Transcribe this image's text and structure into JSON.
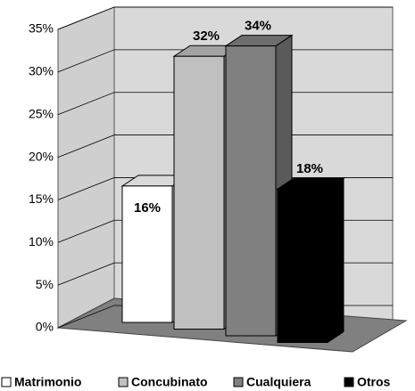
{
  "chart_data": {
    "type": "bar3d",
    "series": [
      {
        "name": "Matrimonio",
        "color": "#ffffff",
        "values": [
          16
        ],
        "value_labels": [
          "16%"
        ]
      },
      {
        "name": "Concubinato",
        "color": "#c0c0c0",
        "values": [
          32
        ],
        "value_labels": [
          "32%"
        ]
      },
      {
        "name": "Cualquiera",
        "color": "#808080",
        "values": [
          34
        ],
        "value_labels": [
          "34%"
        ]
      },
      {
        "name": "Otros",
        "color": "#000000",
        "values": [
          18
        ],
        "value_labels": [
          "18%"
        ]
      }
    ],
    "ylim": [
      0,
      35
    ],
    "yticks": [
      {
        "value": 0,
        "label": "0%"
      },
      {
        "value": 5,
        "label": "5%"
      },
      {
        "value": 10,
        "label": "10%"
      },
      {
        "value": 15,
        "label": "15%"
      },
      {
        "value": 20,
        "label": "20%"
      },
      {
        "value": 25,
        "label": "25%"
      },
      {
        "value": 30,
        "label": "30%"
      },
      {
        "value": 35,
        "label": "35%"
      }
    ],
    "grid": true,
    "legend": "bottom"
  }
}
